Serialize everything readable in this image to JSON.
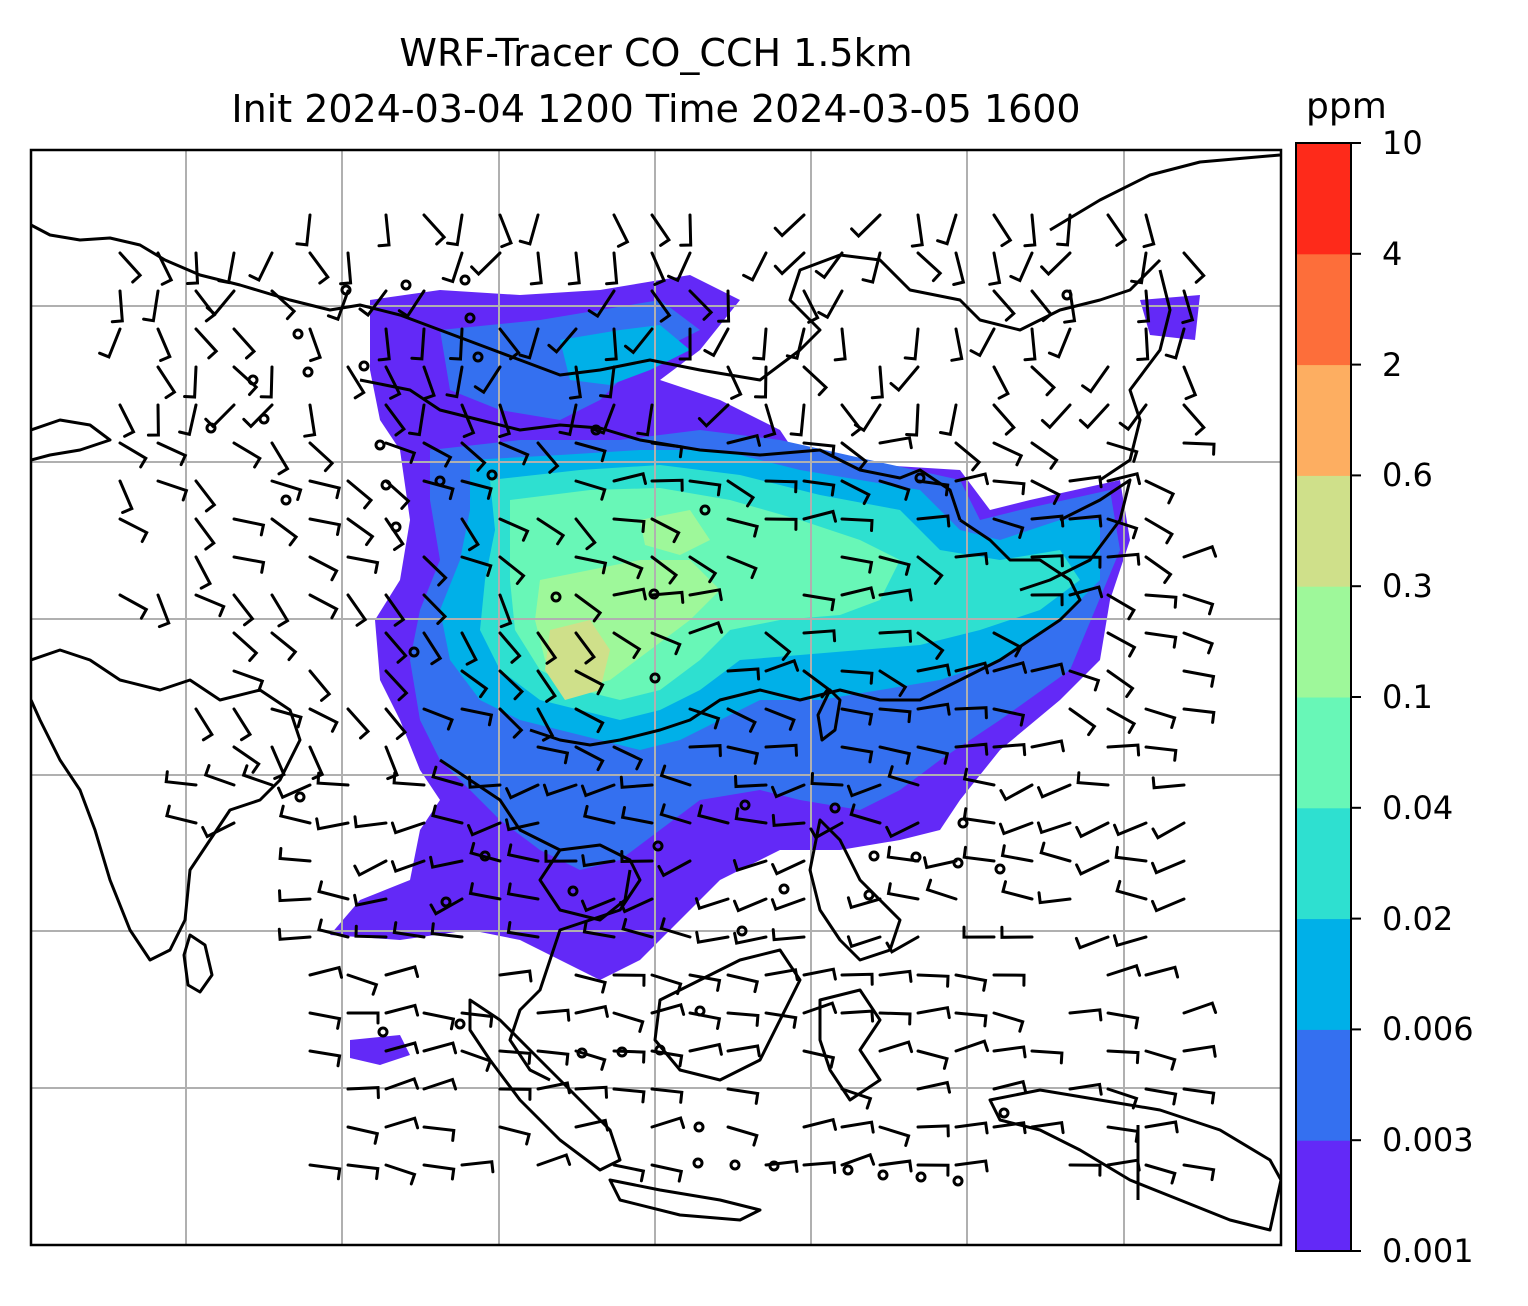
{
  "title": {
    "line1": "WRF-Tracer CO_CCH 1.5km",
    "line2": "Init 2024-03-04 1200 Time 2024-03-05 1600"
  },
  "colorbar": {
    "unit": "ppm",
    "levels": [
      "0.001",
      "0.003",
      "0.006",
      "0.02",
      "0.04",
      "0.1",
      "0.3",
      "0.6",
      "2",
      "4",
      "10"
    ],
    "colors": [
      "#6329f7",
      "#3470f0",
      "#00b0e8",
      "#2ee0d0",
      "#68f7b7",
      "#9ef89a",
      "#cfe08a",
      "#fdae61",
      "#fd6e3a",
      "#fe2a1a"
    ]
  },
  "map": {
    "gridlines": "on",
    "gridline_color": "#b0b0b0",
    "coastline_color": "#000000",
    "overlay": "wind barbs"
  }
}
